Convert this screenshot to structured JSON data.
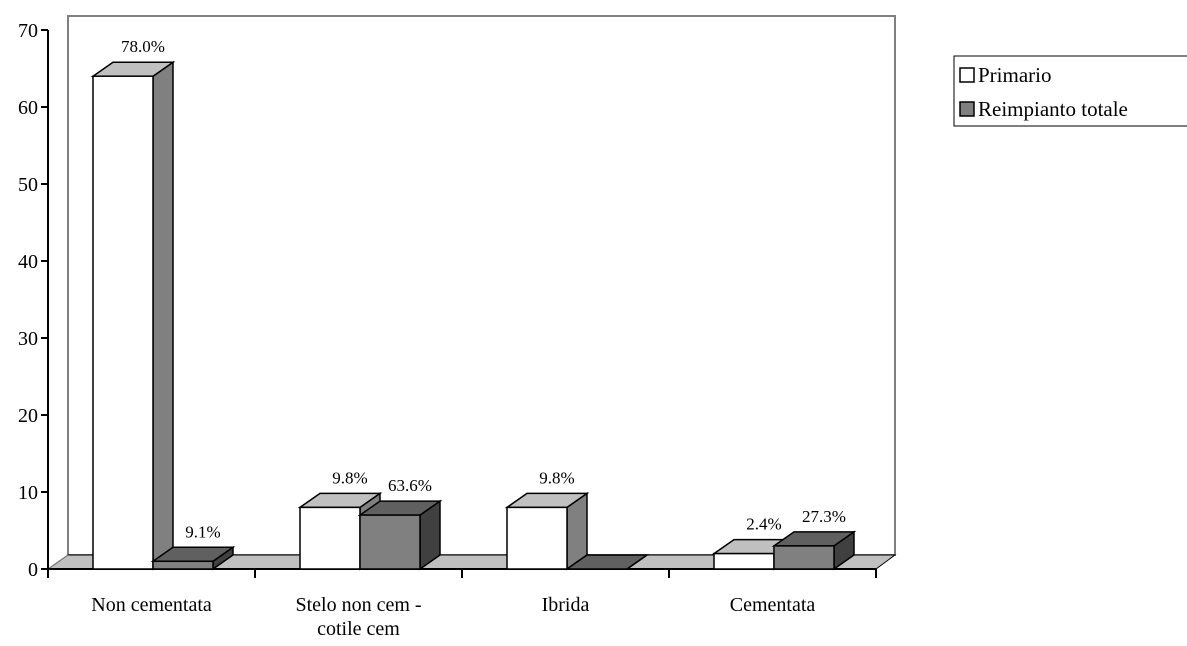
{
  "chart_data": {
    "type": "bar3d",
    "categories": [
      "Non cementata",
      "Stelo non cem - cotile cem",
      "Ibrida",
      "Cementata"
    ],
    "series": [
      {
        "name": "Primario",
        "color": "#ffffff",
        "values": [
          64,
          8,
          8,
          2
        ],
        "percent_labels": [
          "78.0%",
          "9.8%",
          "9.8%",
          "2.4%"
        ]
      },
      {
        "name": "Reimpianto totale",
        "color": "#808080",
        "values": [
          1,
          7,
          0,
          3
        ],
        "percent_labels": [
          "9.1%",
          "63.6%",
          null,
          "27.3%"
        ]
      }
    ],
    "ylim": [
      0,
      70
    ],
    "yticks": [
      0,
      10,
      20,
      30,
      40,
      50,
      60,
      70
    ],
    "grid": false,
    "legend": "top-right"
  }
}
